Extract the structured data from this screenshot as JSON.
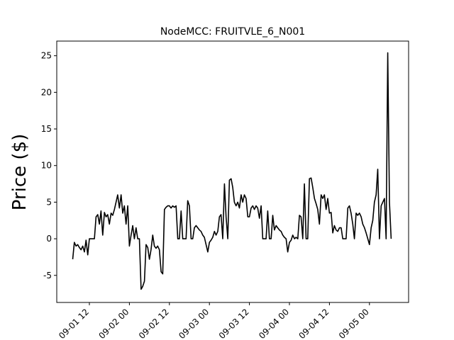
{
  "chart_data": {
    "type": "line",
    "title": "NodeMCC: FRUITVLE_6_N001",
    "xlabel": "",
    "ylabel": "Price ($)",
    "x_tick_labels": [
      "09-01 12",
      "09-02 00",
      "09-02 12",
      "09-03 00",
      "09-03 12",
      "09-04 00",
      "09-04 12",
      "09-05 00"
    ],
    "y_ticks": [
      -5,
      0,
      5,
      10,
      15,
      20,
      25
    ],
    "ylim": [
      -8.7,
      27.0
    ],
    "grid": false,
    "line_color": "#000000",
    "series": [
      {
        "x": [
          "2021-09-01 07:00",
          "2021-09-01 07:30",
          "2021-09-01 08:00",
          "2021-09-01 08:30",
          "2021-09-01 09:00",
          "2021-09-01 09:30",
          "2021-09-01 10:00",
          "2021-09-01 10:30",
          "2021-09-01 11:00",
          "2021-09-01 11:30",
          "2021-09-01 12:00",
          "2021-09-01 12:30",
          "2021-09-01 13:00",
          "2021-09-01 13:30",
          "2021-09-01 14:00",
          "2021-09-01 14:30",
          "2021-09-01 15:00",
          "2021-09-01 15:30",
          "2021-09-01 16:00",
          "2021-09-01 16:30",
          "2021-09-01 17:00",
          "2021-09-01 17:30",
          "2021-09-01 18:00",
          "2021-09-01 18:30",
          "2021-09-01 19:00",
          "2021-09-01 19:30",
          "2021-09-01 20:00",
          "2021-09-01 20:30",
          "2021-09-01 21:00",
          "2021-09-01 21:30",
          "2021-09-01 22:00",
          "2021-09-01 22:30",
          "2021-09-01 23:00",
          "2021-09-01 23:30",
          "2021-09-02 00:00",
          "2021-09-02 00:30",
          "2021-09-02 01:00",
          "2021-09-02 01:30",
          "2021-09-02 02:00",
          "2021-09-02 02:30",
          "2021-09-02 03:00",
          "2021-09-02 03:30",
          "2021-09-02 04:00",
          "2021-09-02 04:30",
          "2021-09-02 05:00",
          "2021-09-02 05:30",
          "2021-09-02 06:00",
          "2021-09-02 06:30",
          "2021-09-02 07:00",
          "2021-09-02 07:30",
          "2021-09-02 08:00",
          "2021-09-02 08:30",
          "2021-09-02 09:00",
          "2021-09-02 09:30",
          "2021-09-02 10:00",
          "2021-09-02 10:30",
          "2021-09-02 11:00",
          "2021-09-02 11:30",
          "2021-09-02 12:00",
          "2021-09-02 12:30",
          "2021-09-02 13:00",
          "2021-09-02 13:30",
          "2021-09-02 14:00",
          "2021-09-02 14:30",
          "2021-09-02 15:00",
          "2021-09-02 15:30",
          "2021-09-02 16:00",
          "2021-09-02 16:30",
          "2021-09-02 17:00",
          "2021-09-02 17:30",
          "2021-09-02 18:00",
          "2021-09-02 18:30",
          "2021-09-02 19:00",
          "2021-09-02 19:30",
          "2021-09-02 20:00",
          "2021-09-02 20:30",
          "2021-09-02 21:00",
          "2021-09-02 21:30",
          "2021-09-02 22:00",
          "2021-09-02 22:30",
          "2021-09-02 23:00",
          "2021-09-02 23:30",
          "2021-09-03 00:00",
          "2021-09-03 00:30",
          "2021-09-03 01:00",
          "2021-09-03 01:30",
          "2021-09-03 02:00",
          "2021-09-03 02:30",
          "2021-09-03 03:00",
          "2021-09-03 03:30",
          "2021-09-03 04:00",
          "2021-09-03 04:30",
          "2021-09-03 05:00",
          "2021-09-03 05:30",
          "2021-09-03 06:00",
          "2021-09-03 06:30",
          "2021-09-03 07:00",
          "2021-09-03 07:30",
          "2021-09-03 08:00",
          "2021-09-03 08:30",
          "2021-09-03 09:00",
          "2021-09-03 09:30",
          "2021-09-03 10:00",
          "2021-09-03 10:30",
          "2021-09-03 11:00",
          "2021-09-03 11:30",
          "2021-09-03 12:00",
          "2021-09-03 12:30",
          "2021-09-03 13:00",
          "2021-09-03 13:30",
          "2021-09-03 14:00",
          "2021-09-03 14:30",
          "2021-09-03 15:00",
          "2021-09-03 15:30",
          "2021-09-03 16:00",
          "2021-09-03 16:30",
          "2021-09-03 17:00",
          "2021-09-03 17:30",
          "2021-09-03 18:00",
          "2021-09-03 18:30",
          "2021-09-03 19:00",
          "2021-09-03 19:30",
          "2021-09-03 20:00",
          "2021-09-03 20:30",
          "2021-09-03 21:00",
          "2021-09-03 21:30",
          "2021-09-03 22:00",
          "2021-09-03 22:30",
          "2021-09-03 23:00",
          "2021-09-03 23:30",
          "2021-09-04 00:00",
          "2021-09-04 00:30",
          "2021-09-04 01:00",
          "2021-09-04 01:30",
          "2021-09-04 02:00",
          "2021-09-04 02:30",
          "2021-09-04 03:00",
          "2021-09-04 03:30",
          "2021-09-04 04:00",
          "2021-09-04 04:30",
          "2021-09-04 05:00",
          "2021-09-04 05:30",
          "2021-09-04 06:00",
          "2021-09-04 06:30",
          "2021-09-04 07:00",
          "2021-09-04 07:30",
          "2021-09-04 08:00",
          "2021-09-04 08:30",
          "2021-09-04 09:00",
          "2021-09-04 09:30",
          "2021-09-04 10:00",
          "2021-09-04 10:30",
          "2021-09-04 11:00",
          "2021-09-04 11:30",
          "2021-09-04 12:00",
          "2021-09-04 12:30",
          "2021-09-04 13:00",
          "2021-09-04 13:30",
          "2021-09-04 14:00",
          "2021-09-04 14:30",
          "2021-09-04 15:00",
          "2021-09-04 15:30",
          "2021-09-04 16:00",
          "2021-09-04 16:30",
          "2021-09-04 17:00",
          "2021-09-04 17:30",
          "2021-09-04 18:00",
          "2021-09-04 18:30",
          "2021-09-04 19:00",
          "2021-09-04 19:30",
          "2021-09-04 20:00",
          "2021-09-04 20:30",
          "2021-09-04 21:00",
          "2021-09-04 21:30",
          "2021-09-04 22:00",
          "2021-09-04 22:30",
          "2021-09-04 23:00",
          "2021-09-04 23:30",
          "2021-09-05 00:00",
          "2021-09-05 00:30",
          "2021-09-05 01:00",
          "2021-09-05 01:30",
          "2021-09-05 02:00",
          "2021-09-05 02:30",
          "2021-09-05 03:00",
          "2021-09-05 03:30",
          "2021-09-05 04:00",
          "2021-09-05 04:30",
          "2021-09-05 05:00",
          "2021-09-05 05:30",
          "2021-09-05 06:00",
          "2021-09-05 06:30"
        ],
        "y": [
          -2.8,
          -0.5,
          -1.0,
          -0.8,
          -1.2,
          -1.5,
          -1.0,
          -1.8,
          -0.2,
          -2.2,
          0,
          0,
          0,
          0,
          3.0,
          3.3,
          2.0,
          3.8,
          0.5,
          3.6,
          3.0,
          3.3,
          2.0,
          3.5,
          3.2,
          4.0,
          5.0,
          6.0,
          4.2,
          6.0,
          3.5,
          4.5,
          2.0,
          4.5,
          -1.0,
          0.5,
          1.8,
          0,
          1.5,
          0,
          0,
          -6.9,
          -6.5,
          -5.8,
          -0.8,
          -1.2,
          -2.8,
          -1.5,
          0.5,
          -1.0,
          -1.3,
          -1.0,
          -1.5,
          -4.5,
          -4.8,
          4.0,
          4.3,
          4.5,
          4.5,
          4.2,
          4.5,
          4.3,
          4.5,
          0,
          0,
          3.8,
          0,
          0,
          0,
          5.2,
          4.5,
          0,
          0,
          1.5,
          1.8,
          1.5,
          1.2,
          1.0,
          0.5,
          0.2,
          -0.8,
          -1.8,
          -0.5,
          -0.2,
          0.2,
          1.0,
          0.5,
          1.0,
          3.0,
          3.3,
          0,
          7.5,
          3.0,
          0,
          8.0,
          8.2,
          7.0,
          5.0,
          4.5,
          5.0,
          4.2,
          6.0,
          5.0,
          6.0,
          5.5,
          3.0,
          3.0,
          4.2,
          4.5,
          4.0,
          4.5,
          4.2,
          2.8,
          4.5,
          0,
          0,
          0,
          3.8,
          0,
          0,
          3.2,
          1.2,
          1.8,
          1.5,
          1.2,
          1.0,
          0.5,
          0.2,
          0,
          -1.8,
          -0.5,
          -0.2,
          0.5,
          0,
          0.2,
          0,
          3.2,
          3.0,
          0,
          7.5,
          0,
          0,
          8.2,
          8.3,
          7.0,
          5.5,
          4.8,
          4.0,
          2.0,
          6.0,
          5.5,
          6.0,
          4.0,
          5.5,
          3.5,
          3.6,
          0.8,
          1.8,
          1.2,
          1.0,
          1.5,
          1.5,
          0,
          0,
          0,
          4.2,
          4.5,
          3.5,
          2.0,
          0,
          3.5,
          3.2,
          3.5,
          3.0,
          2.0,
          1.5,
          0.8,
          0,
          -0.8,
          1.5,
          2.5,
          5.0,
          6.0,
          9.5,
          0,
          4.5,
          5.0,
          5.5,
          0,
          25.4,
          5.0,
          0
        ]
      }
    ]
  }
}
